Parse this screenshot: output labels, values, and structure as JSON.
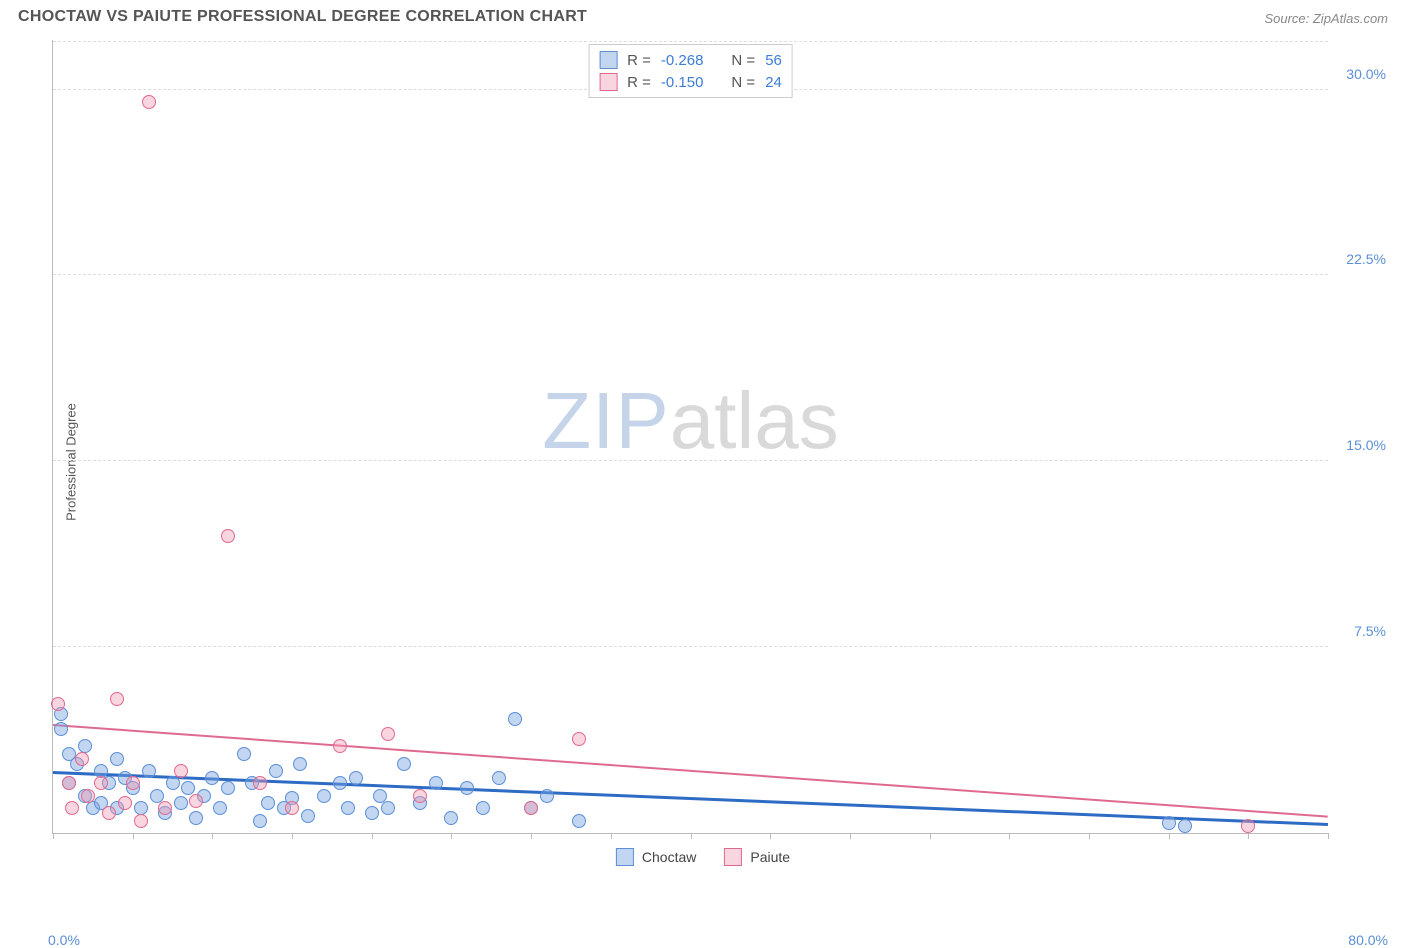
{
  "header": {
    "title": "CHOCTAW VS PAIUTE PROFESSIONAL DEGREE CORRELATION CHART",
    "source": "Source: ZipAtlas.com"
  },
  "chart": {
    "type": "scatter",
    "ylabel": "Professional Degree",
    "xlim": [
      0,
      80
    ],
    "ylim": [
      0,
      32
    ],
    "xtick_step": 5,
    "yticks": [
      7.5,
      15.0,
      22.5,
      30.0
    ],
    "ytick_labels": [
      "7.5%",
      "15.0%",
      "22.5%",
      "30.0%"
    ],
    "xlabel_min": "0.0%",
    "xlabel_max": "80.0%",
    "background_color": "#ffffff",
    "grid_color": "#dddddd",
    "axis_color": "#bbbbbb",
    "tick_label_color": "#5b8fd6",
    "watermark": {
      "zip": "ZIP",
      "atlas": "atlas"
    },
    "series": [
      {
        "name": "Choctaw",
        "fill": "rgba(120,165,225,0.45)",
        "stroke": "#5b8fd6",
        "marker_radius": 7,
        "stats": {
          "r": "-0.268",
          "n": "56"
        },
        "trend": {
          "x1": 0,
          "y1": 2.4,
          "x2": 80,
          "y2": 0.3,
          "color": "#2d6bc4",
          "width": 2.5
        },
        "points": [
          [
            0.5,
            4.8
          ],
          [
            0.5,
            4.2
          ],
          [
            1.0,
            3.2
          ],
          [
            1.0,
            2.0
          ],
          [
            1.5,
            2.8
          ],
          [
            2.0,
            3.5
          ],
          [
            2.0,
            1.5
          ],
          [
            2.5,
            1.0
          ],
          [
            3.0,
            2.5
          ],
          [
            3.0,
            1.2
          ],
          [
            3.5,
            2.0
          ],
          [
            4.0,
            3.0
          ],
          [
            4.0,
            1.0
          ],
          [
            4.5,
            2.2
          ],
          [
            5.0,
            1.8
          ],
          [
            5.5,
            1.0
          ],
          [
            6.0,
            2.5
          ],
          [
            6.5,
            1.5
          ],
          [
            7.0,
            0.8
          ],
          [
            7.5,
            2.0
          ],
          [
            8.0,
            1.2
          ],
          [
            8.5,
            1.8
          ],
          [
            9.0,
            0.6
          ],
          [
            9.5,
            1.5
          ],
          [
            10.0,
            2.2
          ],
          [
            10.5,
            1.0
          ],
          [
            11.0,
            1.8
          ],
          [
            12.0,
            3.2
          ],
          [
            12.5,
            2.0
          ],
          [
            13.0,
            0.5
          ],
          [
            13.5,
            1.2
          ],
          [
            14.0,
            2.5
          ],
          [
            14.5,
            1.0
          ],
          [
            15.0,
            1.4
          ],
          [
            15.5,
            2.8
          ],
          [
            16.0,
            0.7
          ],
          [
            17.0,
            1.5
          ],
          [
            18.0,
            2.0
          ],
          [
            18.5,
            1.0
          ],
          [
            19.0,
            2.2
          ],
          [
            20.0,
            0.8
          ],
          [
            20.5,
            1.5
          ],
          [
            21.0,
            1.0
          ],
          [
            22.0,
            2.8
          ],
          [
            23.0,
            1.2
          ],
          [
            24.0,
            2.0
          ],
          [
            25.0,
            0.6
          ],
          [
            26.0,
            1.8
          ],
          [
            27.0,
            1.0
          ],
          [
            28.0,
            2.2
          ],
          [
            29.0,
            4.6
          ],
          [
            30.0,
            1.0
          ],
          [
            31.0,
            1.5
          ],
          [
            33.0,
            0.5
          ],
          [
            70.0,
            0.4
          ],
          [
            71.0,
            0.3
          ]
        ]
      },
      {
        "name": "Paiute",
        "fill": "rgba(240,150,175,0.4)",
        "stroke": "#e06a8f",
        "marker_radius": 7,
        "stats": {
          "r": "-0.150",
          "n": "24"
        },
        "trend": {
          "x1": 0,
          "y1": 4.3,
          "x2": 80,
          "y2": 0.6,
          "color": "#e06a8f",
          "width": 2
        },
        "points": [
          [
            0.3,
            5.2
          ],
          [
            1.0,
            2.0
          ],
          [
            1.2,
            1.0
          ],
          [
            1.8,
            3.0
          ],
          [
            2.2,
            1.5
          ],
          [
            3.0,
            2.0
          ],
          [
            3.5,
            0.8
          ],
          [
            4.0,
            5.4
          ],
          [
            4.5,
            1.2
          ],
          [
            5.0,
            2.0
          ],
          [
            5.5,
            0.5
          ],
          [
            6.0,
            29.5
          ],
          [
            7.0,
            1.0
          ],
          [
            8.0,
            2.5
          ],
          [
            9.0,
            1.3
          ],
          [
            11.0,
            12.0
          ],
          [
            13.0,
            2.0
          ],
          [
            15.0,
            1.0
          ],
          [
            18.0,
            3.5
          ],
          [
            21.0,
            4.0
          ],
          [
            23.0,
            1.5
          ],
          [
            30.0,
            1.0
          ],
          [
            33.0,
            3.8
          ],
          [
            75.0,
            0.3
          ]
        ]
      }
    ],
    "legend_top": {
      "r_label": "R =",
      "n_label": "N ="
    },
    "legend_bottom": [
      {
        "label": "Choctaw",
        "fill": "rgba(120,165,225,0.45)",
        "stroke": "#5b8fd6"
      },
      {
        "label": "Paiute",
        "fill": "rgba(240,150,175,0.4)",
        "stroke": "#e06a8f"
      }
    ]
  }
}
